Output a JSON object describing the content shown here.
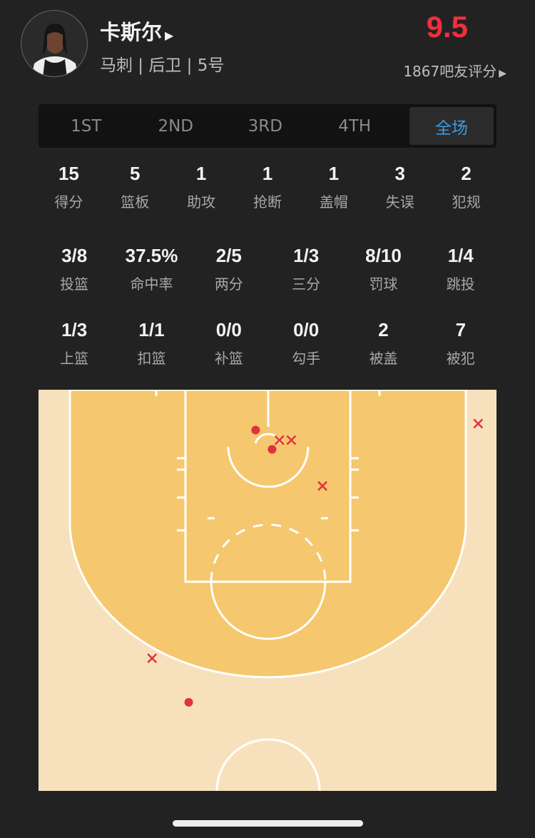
{
  "player": {
    "name": "卡斯尔",
    "info": "马刺 | 后卫 | 5号",
    "rating": "9.5",
    "votes": "1867吧友评分"
  },
  "tabs": [
    "1ST",
    "2ND",
    "3RD",
    "4TH",
    "全场"
  ],
  "active_tab": "全场",
  "stats_row1": [
    {
      "v": "15",
      "l": "得分"
    },
    {
      "v": "5",
      "l": "篮板"
    },
    {
      "v": "1",
      "l": "助攻"
    },
    {
      "v": "1",
      "l": "抢断"
    },
    {
      "v": "1",
      "l": "盖帽"
    },
    {
      "v": "3",
      "l": "失误"
    },
    {
      "v": "2",
      "l": "犯规"
    }
  ],
  "stats_row2": [
    {
      "v": "3/8",
      "l": "投篮"
    },
    {
      "v": "37.5%",
      "l": "命中率"
    },
    {
      "v": "2/5",
      "l": "两分"
    },
    {
      "v": "1/3",
      "l": "三分"
    },
    {
      "v": "8/10",
      "l": "罚球"
    },
    {
      "v": "1/4",
      "l": "跳投"
    }
  ],
  "stats_row3": [
    {
      "v": "1/3",
      "l": "上篮"
    },
    {
      "v": "1/1",
      "l": "扣篮"
    },
    {
      "v": "0/0",
      "l": "补篮"
    },
    {
      "v": "0/0",
      "l": "勾手"
    },
    {
      "v": "2",
      "l": "被盖"
    },
    {
      "v": "7",
      "l": "被犯"
    }
  ],
  "colors": {
    "rating": "#f0303c",
    "active_tab": "#3d9be0",
    "shot": "#e0323c",
    "court_outer": "#f7e1bd",
    "court_inner": "#f5c76e"
  },
  "shot_chart": {
    "units": "feet from court centerline (x) and baseline (y)",
    "shots": [
      {
        "x": -1.3,
        "y": 4.4,
        "made": true
      },
      {
        "x": 0.5,
        "y": 6.5,
        "made": true
      },
      {
        "x": -8.6,
        "y": 34.1,
        "made": true
      },
      {
        "x": 1.3,
        "y": 5.5,
        "made": false
      },
      {
        "x": 2.6,
        "y": 5.5,
        "made": false
      },
      {
        "x": 6.0,
        "y": 10.5,
        "made": false
      },
      {
        "x": 23.0,
        "y": 3.7,
        "made": false
      },
      {
        "x": -12.6,
        "y": 29.3,
        "made": false
      }
    ]
  }
}
